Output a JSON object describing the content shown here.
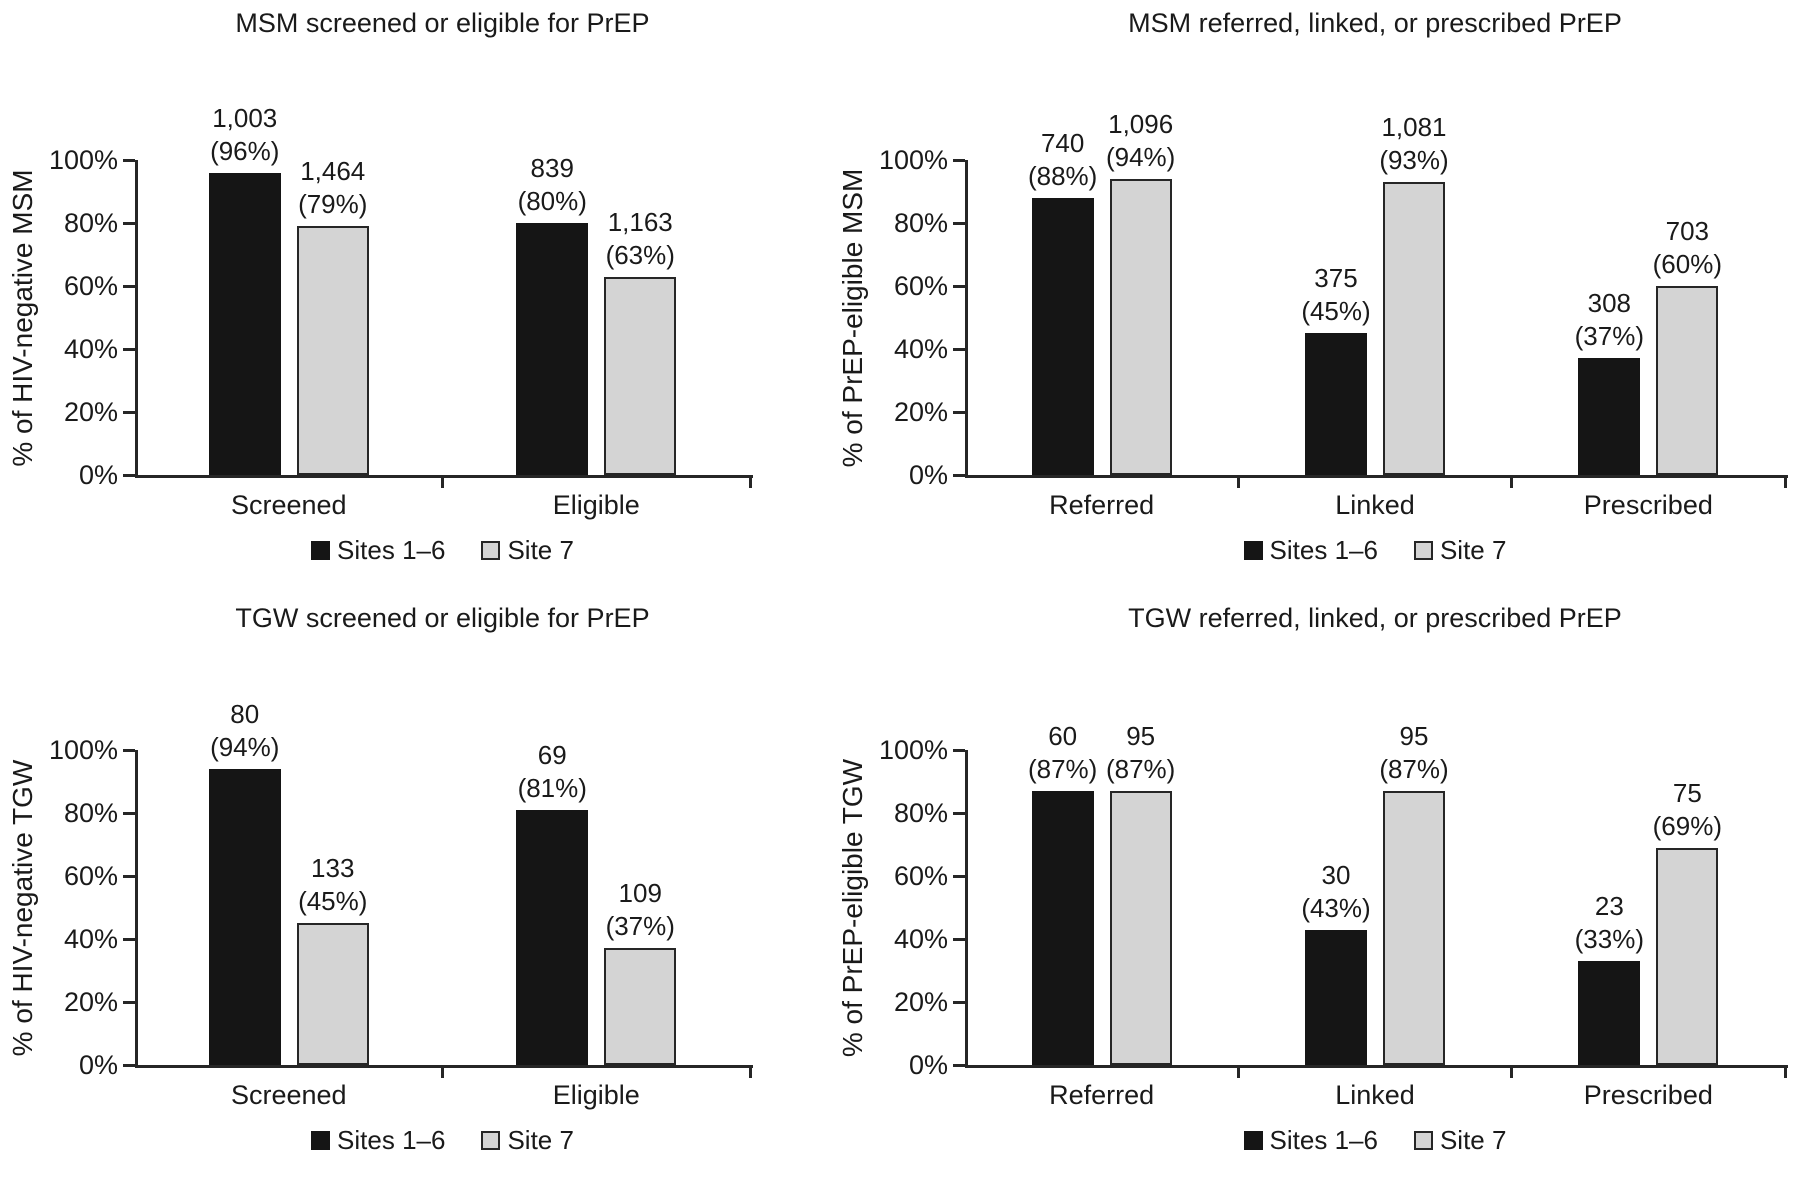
{
  "figure": {
    "background": "#ffffff",
    "text_color": "#1a1a1a",
    "series_colors": {
      "sites_1_6": "#151515",
      "site_7": "#d4d4d4"
    }
  },
  "chart_data": [
    {
      "type": "bar",
      "title": "MSM screened or eligible for PrEP",
      "ylabel": "% of HIV-negative MSM",
      "xlabel": "",
      "ylim": [
        0,
        100
      ],
      "yticks": [
        "0%",
        "20%",
        "40%",
        "60%",
        "80%",
        "100%"
      ],
      "grid": false,
      "legend_position": "bottom",
      "categories": [
        "Screened",
        "Eligible"
      ],
      "series": [
        {
          "name": "Sites 1–6",
          "color": "#151515",
          "points": [
            {
              "count": "1,003",
              "percent": 96
            },
            {
              "count": "839",
              "percent": 80
            }
          ]
        },
        {
          "name": "Site 7",
          "color": "#d4d4d4",
          "points": [
            {
              "count": "1,464",
              "percent": 79
            },
            {
              "count": "1,163",
              "percent": 63
            }
          ]
        }
      ]
    },
    {
      "type": "bar",
      "title": "MSM referred, linked, or prescribed PrEP",
      "ylabel": "% of PrEP-eligible MSM",
      "xlabel": "",
      "ylim": [
        0,
        100
      ],
      "yticks": [
        "0%",
        "20%",
        "40%",
        "60%",
        "80%",
        "100%"
      ],
      "grid": false,
      "legend_position": "bottom",
      "categories": [
        "Referred",
        "Linked",
        "Prescribed"
      ],
      "series": [
        {
          "name": "Sites 1–6",
          "color": "#151515",
          "points": [
            {
              "count": "740",
              "percent": 88
            },
            {
              "count": "375",
              "percent": 45
            },
            {
              "count": "308",
              "percent": 37
            }
          ]
        },
        {
          "name": "Site 7",
          "color": "#d4d4d4",
          "points": [
            {
              "count": "1,096",
              "percent": 94
            },
            {
              "count": "1,081",
              "percent": 93
            },
            {
              "count": "703",
              "percent": 60
            }
          ]
        }
      ]
    },
    {
      "type": "bar",
      "title": "TGW screened or eligible for PrEP",
      "ylabel": "% of HIV-negative TGW",
      "xlabel": "",
      "ylim": [
        0,
        100
      ],
      "yticks": [
        "0%",
        "20%",
        "40%",
        "60%",
        "80%",
        "100%"
      ],
      "grid": false,
      "legend_position": "bottom",
      "categories": [
        "Screened",
        "Eligible"
      ],
      "series": [
        {
          "name": "Sites 1–6",
          "color": "#151515",
          "points": [
            {
              "count": "80",
              "percent": 94
            },
            {
              "count": "69",
              "percent": 81
            }
          ]
        },
        {
          "name": "Site 7",
          "color": "#d4d4d4",
          "points": [
            {
              "count": "133",
              "percent": 45
            },
            {
              "count": "109",
              "percent": 37
            }
          ]
        }
      ]
    },
    {
      "type": "bar",
      "title": "TGW referred, linked, or prescribed PrEP",
      "ylabel": "% of PrEP-eligible TGW",
      "xlabel": "",
      "ylim": [
        0,
        100
      ],
      "yticks": [
        "0%",
        "20%",
        "40%",
        "60%",
        "80%",
        "100%"
      ],
      "grid": false,
      "legend_position": "bottom",
      "categories": [
        "Referred",
        "Linked",
        "Prescribed"
      ],
      "series": [
        {
          "name": "Sites 1–6",
          "color": "#151515",
          "points": [
            {
              "count": "60",
              "percent": 87
            },
            {
              "count": "30",
              "percent": 43
            },
            {
              "count": "23",
              "percent": 33
            }
          ]
        },
        {
          "name": "Site 7",
          "color": "#d4d4d4",
          "points": [
            {
              "count": "95",
              "percent": 87
            },
            {
              "count": "95",
              "percent": 87
            },
            {
              "count": "75",
              "percent": 69
            }
          ]
        }
      ]
    }
  ]
}
